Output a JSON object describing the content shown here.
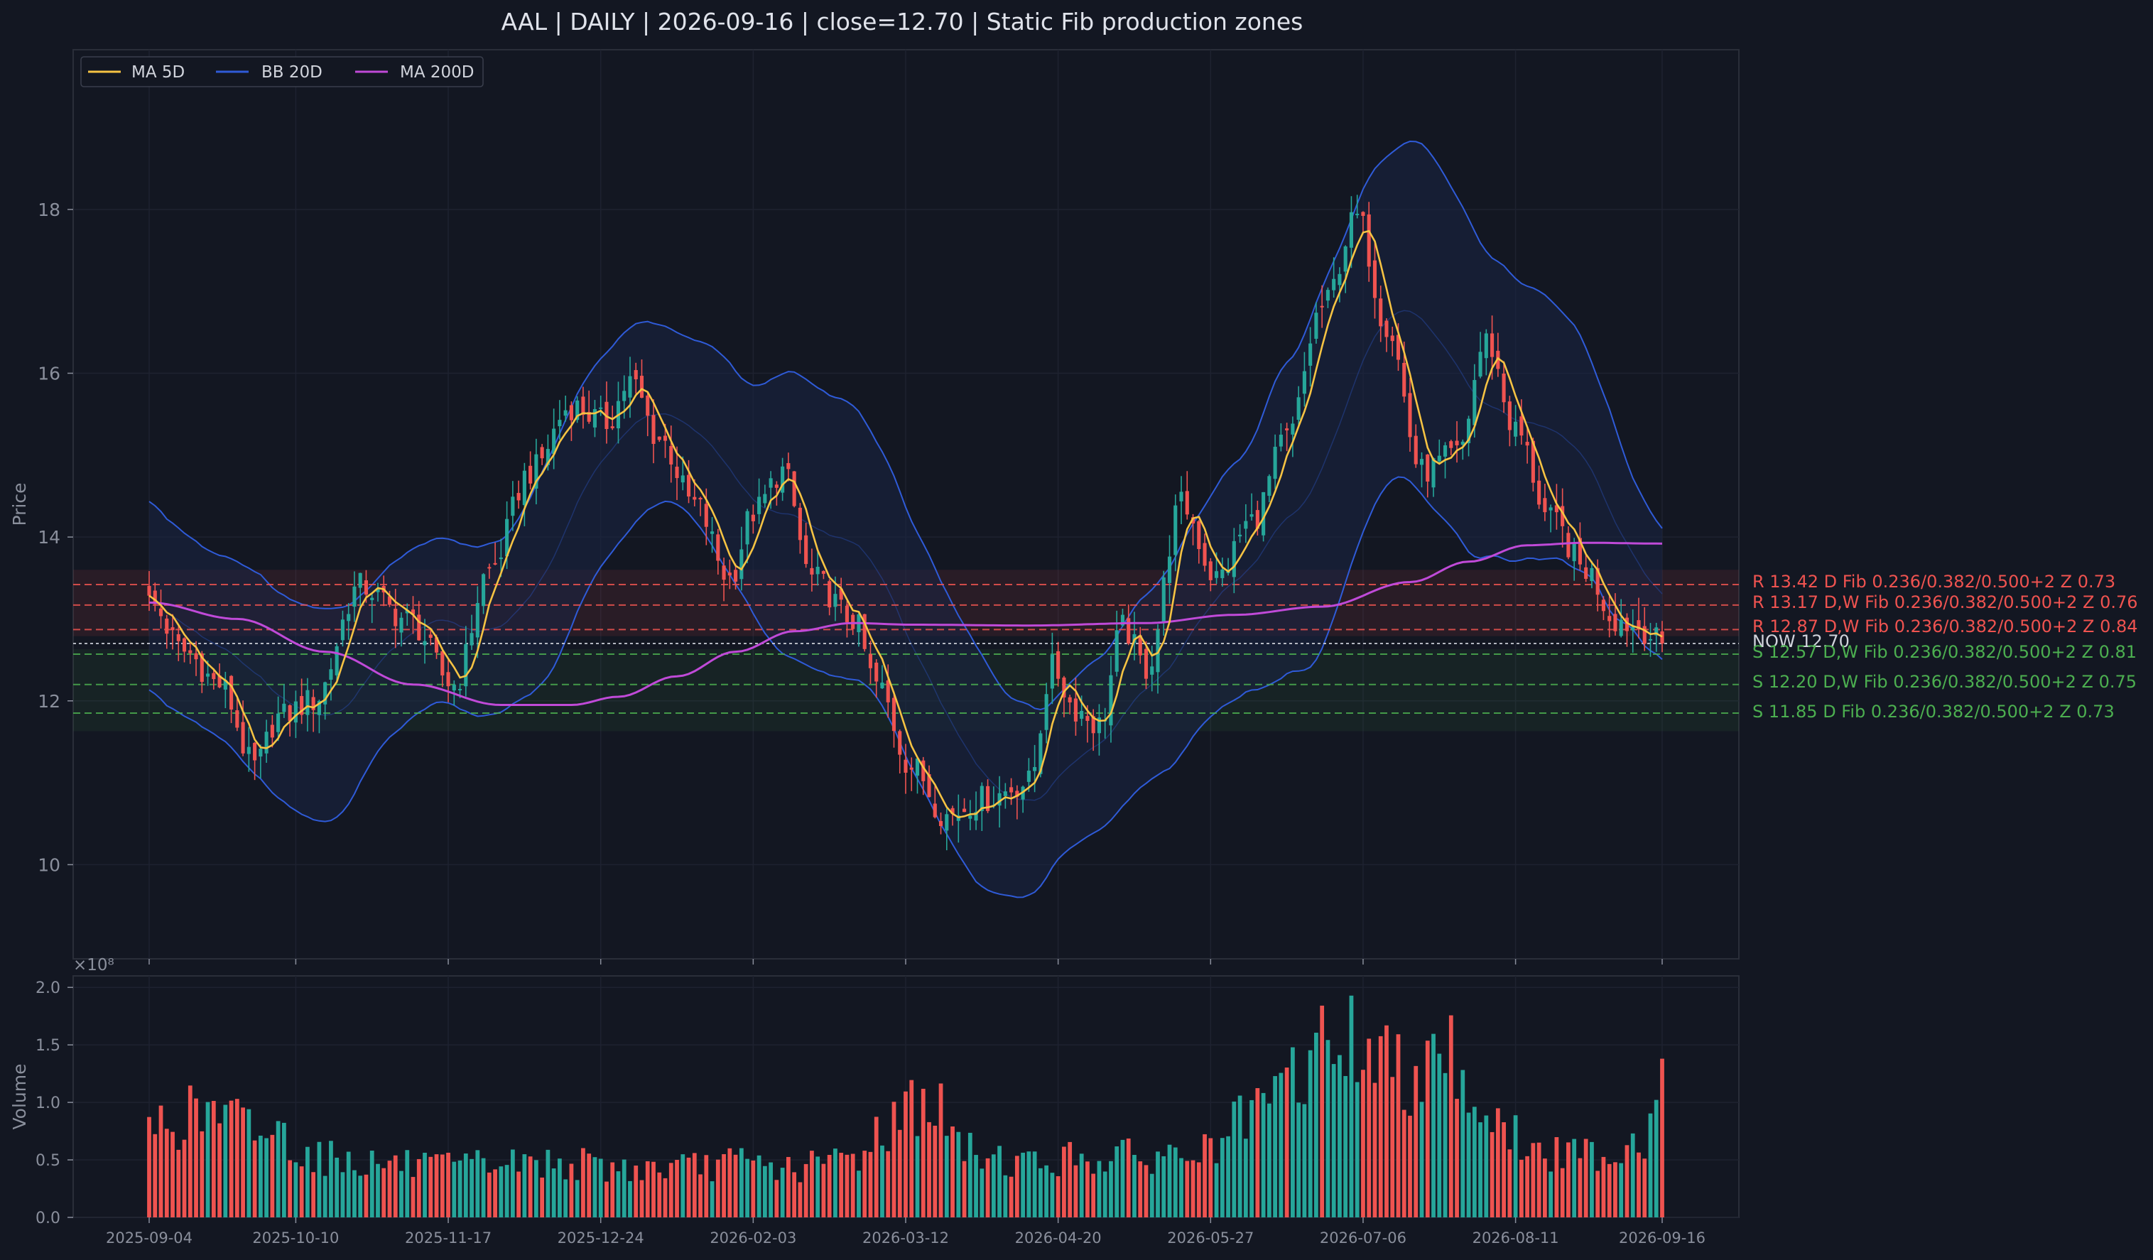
{
  "title": "AAL  |  DAILY  |  2026-09-16  |  close=12.70  |  Static Fib production zones",
  "colors": {
    "background": "#131722",
    "panel_border": "#2a2e39",
    "grid": "#1e2230",
    "up": "#26a69a",
    "down": "#ef5350",
    "ma5": "#f6c343",
    "bb": "#2f5bd8",
    "bb_fill": "#1a2444",
    "ma200": "#c04ad8",
    "resistance": "#ef5350",
    "support": "#4caf50",
    "now_line": "#d1d4dc",
    "tick_text": "#8a8f9c"
  },
  "legend": {
    "position": "top-left",
    "items": [
      {
        "label": "MA 5D",
        "color": "#f6c343"
      },
      {
        "label": "BB 20D",
        "color": "#2f5bd8"
      },
      {
        "label": "MA 200D",
        "color": "#c04ad8"
      }
    ]
  },
  "price_axis": {
    "label": "Price",
    "ylim": [
      8.85,
      19.95
    ],
    "ticks": [
      10,
      12,
      14,
      16,
      18
    ],
    "tick_labels": [
      "10",
      "12",
      "14",
      "16",
      "18"
    ]
  },
  "volume_axis": {
    "label": "Volume",
    "multiplier": "×10⁸",
    "ylim": [
      0,
      2.1
    ],
    "ticks": [
      0.0,
      0.5,
      1.0,
      1.5,
      2.0
    ],
    "tick_labels": [
      "0.0",
      "0.5",
      "1.0",
      "1.5",
      "2.0"
    ]
  },
  "x_axis": {
    "tick_labels": [
      "2025-09-04",
      "2025-10-10",
      "2025-11-17",
      "2025-12-24",
      "2026-02-03",
      "2026-03-12",
      "2026-04-20",
      "2026-05-27",
      "2026-07-06",
      "2026-08-11",
      "2026-09-16"
    ],
    "tick_index": [
      0,
      25,
      51,
      77,
      103,
      129,
      155,
      181,
      207,
      233,
      258
    ]
  },
  "zones": [
    {
      "kind": "R",
      "price": 13.42,
      "label": "R 13.42  D  Fib 0.236/0.382/0.500+2  Z 0.73",
      "color": "#ef5350"
    },
    {
      "kind": "R",
      "price": 13.17,
      "label": "R 13.17  D,W  Fib 0.236/0.382/0.500+2  Z 0.76",
      "color": "#ef5350"
    },
    {
      "kind": "R",
      "price": 12.87,
      "label": "R 12.87  D,W  Fib 0.236/0.382/0.500+2  Z 0.84",
      "color": "#ef5350"
    },
    {
      "kind": "NOW",
      "price": 12.7,
      "label": "NOW 12.70",
      "color": "#d1d4dc"
    },
    {
      "kind": "S",
      "price": 12.57,
      "label": "S 12.57  D,W  Fib 0.236/0.382/0.500+2  Z 0.81",
      "color": "#4caf50"
    },
    {
      "kind": "S",
      "price": 12.2,
      "label": "S 12.20  D,W  Fib 0.236/0.382/0.500+2  Z 0.75",
      "color": "#4caf50"
    },
    {
      "kind": "S",
      "price": 11.85,
      "label": "S 11.85  D  Fib 0.236/0.382/0.500+2  Z 0.73",
      "color": "#4caf50"
    }
  ],
  "chart_data": {
    "type": "candlestick",
    "ticker": "AAL",
    "interval": "DAILY",
    "last_date": "2026-09-16",
    "close": 12.7,
    "bars": 259,
    "date_anchors": [
      "2025-09-04",
      "2025-10-10",
      "2025-11-17",
      "2025-12-24",
      "2026-02-03",
      "2026-03-12",
      "2026-04-20",
      "2026-05-27",
      "2026-07-06",
      "2026-08-11",
      "2026-09-16"
    ],
    "anchor_index": [
      0,
      25,
      51,
      77,
      103,
      129,
      155,
      181,
      207,
      233,
      258
    ],
    "close_path": {
      "index": [
        0,
        6,
        12,
        18,
        22,
        28,
        36,
        44,
        52,
        58,
        65,
        72,
        78,
        82,
        87,
        93,
        99,
        103,
        108,
        113,
        120,
        124,
        130,
        136,
        142,
        150,
        154,
        158,
        162,
        166,
        170,
        176,
        182,
        188,
        194,
        200,
        206,
        211,
        217,
        223,
        228,
        233,
        239,
        245,
        250,
        254,
        258
      ],
      "value": [
        13.2,
        12.6,
        12.2,
        11.2,
        11.8,
        12.0,
        13.4,
        13.0,
        12.2,
        13.6,
        14.8,
        15.6,
        15.4,
        15.9,
        15.2,
        14.4,
        13.5,
        14.3,
        14.8,
        13.5,
        13.0,
        12.2,
        11.2,
        10.6,
        10.8,
        11.0,
        12.4,
        11.9,
        11.7,
        12.9,
        12.4,
        14.4,
        13.5,
        14.2,
        15.2,
        16.8,
        17.9,
        16.6,
        14.8,
        15.0,
        16.4,
        15.3,
        14.2,
        13.6,
        13.0,
        12.9,
        12.7
      ]
    },
    "ma5_color": "#f6c343",
    "ma200_path": {
      "index": [
        0,
        15,
        30,
        45,
        60,
        72,
        80,
        90,
        100,
        110,
        120,
        130,
        150,
        170,
        185,
        200,
        215,
        225,
        235,
        245,
        258
      ],
      "value": [
        13.2,
        13.0,
        12.6,
        12.2,
        11.95,
        11.95,
        12.05,
        12.3,
        12.6,
        12.85,
        12.95,
        12.93,
        12.92,
        12.95,
        13.05,
        13.15,
        13.45,
        13.7,
        13.9,
        13.93,
        13.92
      ]
    },
    "bb_width_path": {
      "index": [
        0,
        10,
        20,
        30,
        40,
        50,
        60,
        70,
        80,
        90,
        100,
        110,
        118,
        125,
        132,
        140,
        148,
        155,
        162,
        170,
        178,
        186,
        194,
        200,
        206,
        212,
        218,
        224,
        230,
        236,
        242,
        248,
        254,
        258
      ],
      "value": [
        1.15,
        1.1,
        1.25,
        1.3,
        1.05,
        1.0,
        1.05,
        1.35,
        1.25,
        1.05,
        1.3,
        1.75,
        1.7,
        1.55,
        1.5,
        1.45,
        1.2,
        1.0,
        1.05,
        1.15,
        1.3,
        1.45,
        1.9,
        2.2,
        2.1,
        2.0,
        2.15,
        2.05,
        1.8,
        1.65,
        1.5,
        1.25,
        0.9,
        0.8
      ]
    },
    "volume_path": {
      "index": [
        0,
        10,
        20,
        30,
        40,
        50,
        60,
        70,
        80,
        90,
        100,
        110,
        120,
        126,
        132,
        140,
        150,
        160,
        170,
        180,
        188,
        196,
        202,
        208,
        214,
        220,
        226,
        232,
        238,
        244,
        250,
        255,
        258
      ],
      "value": [
        0.85,
        0.95,
        0.8,
        0.55,
        0.5,
        0.45,
        0.5,
        0.5,
        0.45,
        0.45,
        0.5,
        0.45,
        0.55,
        0.85,
        1.1,
        0.6,
        0.5,
        0.55,
        0.55,
        0.6,
        0.9,
        1.3,
        1.65,
        1.55,
        1.3,
        1.7,
        1.1,
        0.75,
        0.55,
        0.6,
        0.6,
        0.75,
        1.38
      ]
    },
    "volume_unit": "×10⁸"
  }
}
